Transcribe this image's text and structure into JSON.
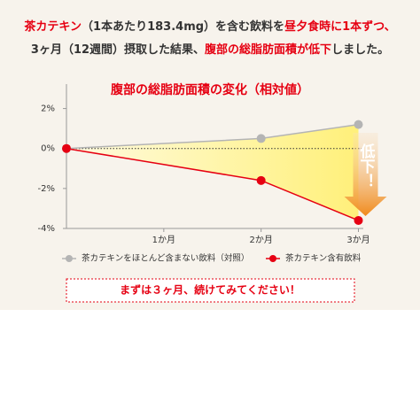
{
  "header": {
    "lines": [
      [
        {
          "text": "茶カテキン",
          "emphasis": true
        },
        {
          "text": "（1本あたり183.4mg）を含む飲料を",
          "emphasis": false
        },
        {
          "text": "昼夕食時に1本ずつ、",
          "emphasis": true
        }
      ],
      [
        {
          "text": "3ヶ月（12週間）摂取した結果、",
          "emphasis": false
        },
        {
          "text": "腹部の総脂肪面積が低下",
          "emphasis": true
        },
        {
          "text": "しました。",
          "emphasis": false
        }
      ]
    ]
  },
  "chart_data": {
    "type": "line",
    "title": "腹部の総脂肪面積の変化（相対値）",
    "x": [
      0,
      2,
      3
    ],
    "xlim": [
      0,
      3.05
    ],
    "xticks": [
      {
        "value": 1,
        "label": "1か月"
      },
      {
        "value": 2,
        "label": "2か月"
      },
      {
        "value": 3,
        "label": "3か月"
      }
    ],
    "ylim": [
      -4,
      3
    ],
    "yticks": [
      {
        "value": 2,
        "label": "2%"
      },
      {
        "value": 0,
        "label": "0%"
      },
      {
        "value": -2,
        "label": "-2%"
      },
      {
        "value": -4,
        "label": "-4%"
      }
    ],
    "series": [
      {
        "name": "茶カテキンをほとんど含まない飲料（対照）",
        "color": "#b4b4b4",
        "values": [
          0,
          0.5,
          1.2
        ]
      },
      {
        "name": "茶カテキン含有飲料",
        "color": "#e60012",
        "values": [
          0,
          -1.6,
          -3.6
        ]
      }
    ],
    "annotation": "低下！"
  },
  "footer": "まずは３ヶ月、続けてみてください！"
}
